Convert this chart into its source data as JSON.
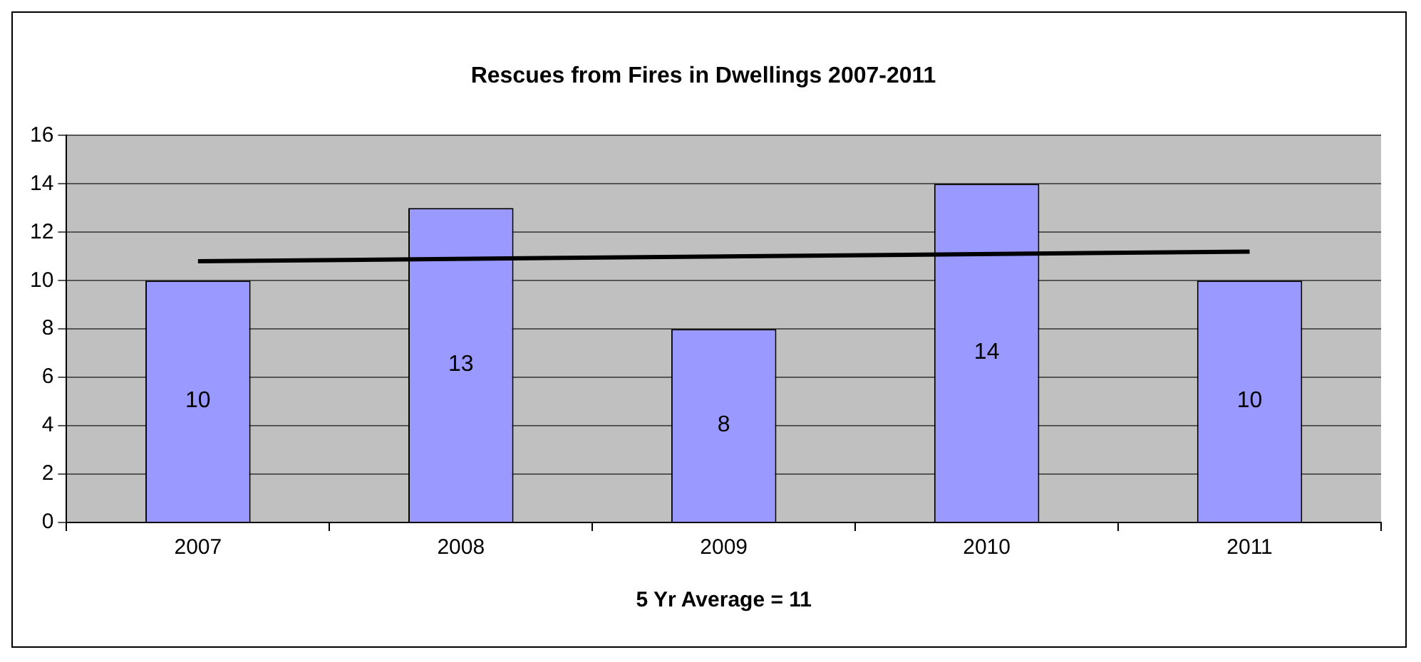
{
  "chart_data": {
    "type": "bar",
    "title": "Rescues from Fires in Dwellings 2007-2011",
    "xlabel": "5 Yr Average = 11",
    "categories": [
      "2007",
      "2008",
      "2009",
      "2010",
      "2011"
    ],
    "series": [
      {
        "color": "#9999ff",
        "values": [
          10,
          13,
          8,
          14,
          10
        ],
        "value_labels": [
          "10",
          "13",
          "8",
          "14",
          "10"
        ]
      },
      {
        "type": "line",
        "color": "#000000",
        "values": [
          10.8,
          null,
          null,
          null,
          11.2
        ],
        "marker": "none"
      }
    ],
    "ylim": [
      0,
      16
    ],
    "yticks": [
      0,
      2,
      4,
      6,
      8,
      10,
      12,
      14,
      16
    ],
    "grid": "y",
    "legend": false
  }
}
